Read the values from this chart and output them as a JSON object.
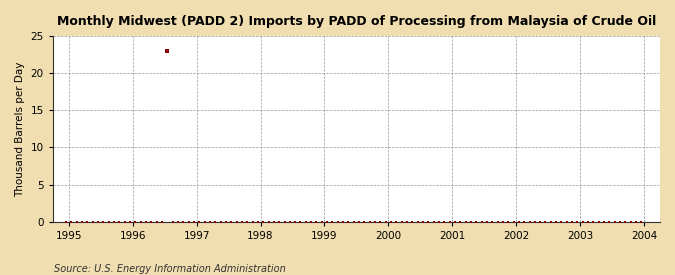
{
  "title": "Monthly Midwest (PADD 2) Imports by PADD of Processing from Malaysia of Crude Oil",
  "ylabel": "Thousand Barrels per Day",
  "source": "Source: U.S. Energy Information Administration",
  "background_color": "#f0deb0",
  "plot_bg_color": "#ffffff",
  "marker_color": "#8b0000",
  "xlim_start": 1994.75,
  "xlim_end": 2004.25,
  "ylim": [
    0,
    25
  ],
  "yticks": [
    0,
    5,
    10,
    15,
    20,
    25
  ],
  "xticks": [
    1995,
    1996,
    1997,
    1998,
    1999,
    2000,
    2001,
    2002,
    2003,
    2004
  ],
  "spike_x": 1996.54,
  "spike_y": 23
}
